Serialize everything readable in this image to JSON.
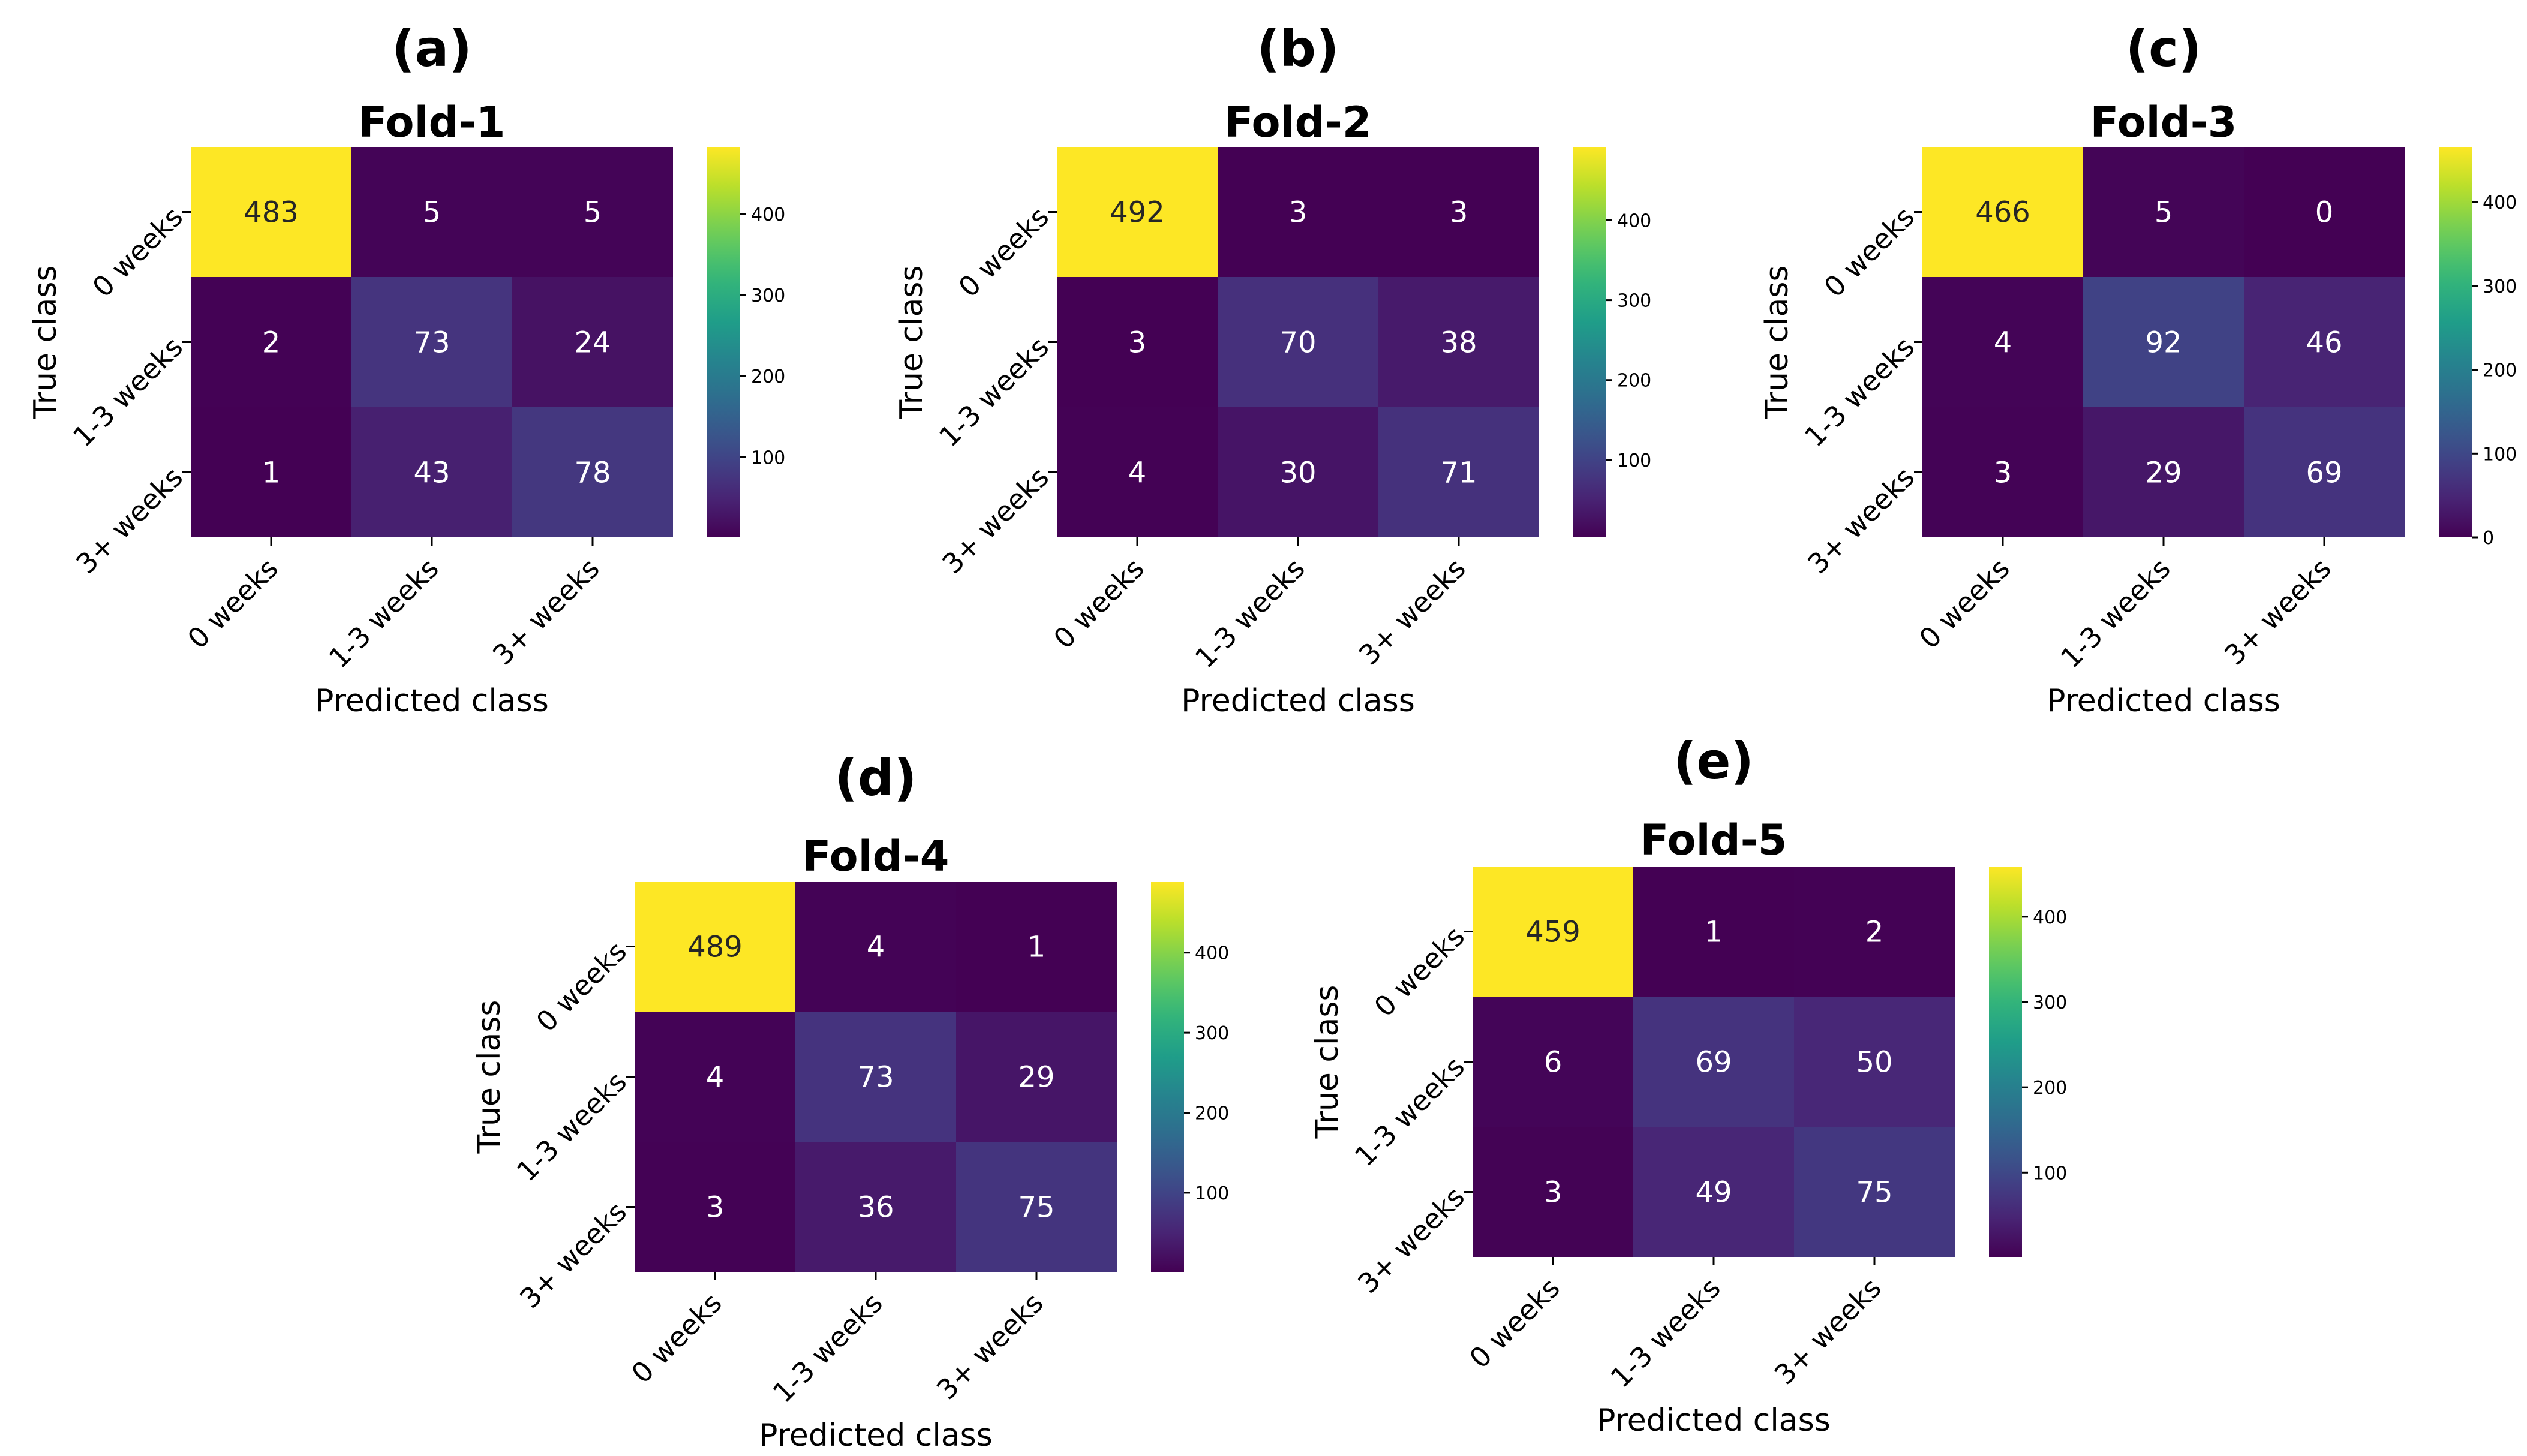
{
  "chart_data": [
    {
      "type": "heatmap",
      "panel_label": "(a)",
      "title": "Fold-1",
      "xlabel": "Predicted class",
      "ylabel": "True class",
      "x_categories": [
        "0 weeks",
        "1-3 weeks",
        "3+ weeks"
      ],
      "y_categories": [
        "0 weeks",
        "1-3 weeks",
        "3+ weeks"
      ],
      "matrix": [
        [
          483,
          5,
          5
        ],
        [
          2,
          73,
          24
        ],
        [
          1,
          43,
          78
        ]
      ],
      "colormap": "viridis",
      "colorbar_range": [
        1,
        483
      ],
      "colorbar_ticks": [
        "100",
        "200",
        "300",
        "400"
      ]
    },
    {
      "type": "heatmap",
      "panel_label": "(b)",
      "title": "Fold-2",
      "xlabel": "Predicted class",
      "ylabel": "True class",
      "x_categories": [
        "0 weeks",
        "1-3 weeks",
        "3+ weeks"
      ],
      "y_categories": [
        "0 weeks",
        "1-3 weeks",
        "3+ weeks"
      ],
      "matrix": [
        [
          492,
          3,
          3
        ],
        [
          3,
          70,
          38
        ],
        [
          4,
          30,
          71
        ]
      ],
      "colormap": "viridis",
      "colorbar_range": [
        3,
        492
      ],
      "colorbar_ticks": [
        "100",
        "200",
        "300",
        "400"
      ]
    },
    {
      "type": "heatmap",
      "panel_label": "(c)",
      "title": "Fold-3",
      "xlabel": "Predicted class",
      "ylabel": "True class",
      "x_categories": [
        "0 weeks",
        "1-3 weeks",
        "3+ weeks"
      ],
      "y_categories": [
        "0 weeks",
        "1-3 weeks",
        "3+ weeks"
      ],
      "matrix": [
        [
          466,
          5,
          0
        ],
        [
          4,
          92,
          46
        ],
        [
          3,
          29,
          69
        ]
      ],
      "colormap": "viridis",
      "colorbar_range": [
        0,
        466
      ],
      "colorbar_ticks": [
        "0",
        "100",
        "200",
        "300",
        "400"
      ]
    },
    {
      "type": "heatmap",
      "panel_label": "(d)",
      "title": "Fold-4",
      "xlabel": "Predicted class",
      "ylabel": "True class",
      "x_categories": [
        "0 weeks",
        "1-3 weeks",
        "3+ weeks"
      ],
      "y_categories": [
        "0 weeks",
        "1-3 weeks",
        "3+ weeks"
      ],
      "matrix": [
        [
          489,
          4,
          1
        ],
        [
          4,
          73,
          29
        ],
        [
          3,
          36,
          75
        ]
      ],
      "colormap": "viridis",
      "colorbar_range": [
        1,
        489
      ],
      "colorbar_ticks": [
        "100",
        "200",
        "300",
        "400"
      ]
    },
    {
      "type": "heatmap",
      "panel_label": "(e)",
      "title": "Fold-5",
      "xlabel": "Predicted class",
      "ylabel": "True class",
      "x_categories": [
        "0 weeks",
        "1-3 weeks",
        "3+ weeks"
      ],
      "y_categories": [
        "0 weeks",
        "1-3 weeks",
        "3+ weeks"
      ],
      "matrix": [
        [
          459,
          1,
          2
        ],
        [
          6,
          69,
          50
        ],
        [
          3,
          49,
          75
        ]
      ],
      "colormap": "viridis",
      "colorbar_range": [
        1,
        459
      ],
      "colorbar_ticks": [
        "100",
        "200",
        "300",
        "400"
      ]
    }
  ]
}
